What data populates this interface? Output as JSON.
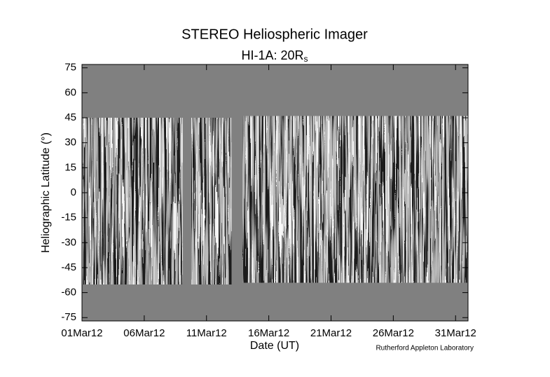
{
  "chart_data": {
    "type": "jmap",
    "title": "STEREO Heliospheric Imager",
    "subtitle": "HI-1A: 20R",
    "subtitle_subscript": "s",
    "xlabel": "Date (UT)",
    "ylabel": "Heliographic Latitude (°)",
    "credit": "Rutherford Appleton Laboratory",
    "xlim": [
      0,
      31
    ],
    "xticks": [
      {
        "value": 0,
        "label": "01Mar12"
      },
      {
        "value": 5,
        "label": "06Mar12"
      },
      {
        "value": 10,
        "label": "11Mar12"
      },
      {
        "value": 15,
        "label": "16Mar12"
      },
      {
        "value": 20,
        "label": "21Mar12"
      },
      {
        "value": 25,
        "label": "26Mar12"
      },
      {
        "value": 30,
        "label": "31Mar12"
      }
    ],
    "ylim": [
      -77,
      77
    ],
    "yticks": [
      75,
      60,
      45,
      30,
      15,
      0,
      -15,
      -30,
      -45,
      -60,
      -75
    ],
    "background_color": "#808080",
    "coverage": [
      {
        "x": [
          0,
          8.1
        ],
        "lat": [
          -55,
          45
        ]
      },
      {
        "x": [
          8.8,
          12.0
        ],
        "lat": [
          -55,
          45
        ]
      },
      {
        "x": [
          12.9,
          31
        ],
        "lat": [
          -54,
          46
        ]
      }
    ]
  }
}
